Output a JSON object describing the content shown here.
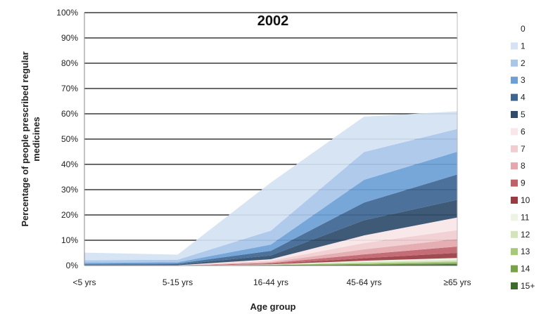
{
  "chart_data": {
    "type": "area",
    "stacked": true,
    "title": "2002",
    "xlabel": "Age group",
    "ylabel": "Percentage of people prescribed regular medicines",
    "categories": [
      "<5 yrs",
      "5-15 yrs",
      "16-44 yrs",
      "45-64 yrs",
      "≥65 yrs"
    ],
    "yticks": [
      "0%",
      "10%",
      "20%",
      "30%",
      "40%",
      "50%",
      "60%",
      "70%",
      "80%",
      "90%",
      "100%"
    ],
    "ylim": [
      0,
      100
    ],
    "grid": true,
    "legend_position": "right",
    "legend_labels": [
      "0",
      "1",
      "2",
      "3",
      "4",
      "5",
      "6",
      "7",
      "8",
      "9",
      "10",
      "11",
      "12",
      "13",
      "14",
      "15+"
    ],
    "series": [
      {
        "name": "15+",
        "color": "#3d6b2e",
        "values": [
          0,
          0,
          0.1,
          0.3,
          0.6
        ]
      },
      {
        "name": "14",
        "color": "#77a346",
        "values": [
          0,
          0,
          0.1,
          0.3,
          0.5
        ]
      },
      {
        "name": "13",
        "color": "#a6c978",
        "values": [
          0,
          0,
          0.1,
          0.4,
          0.5
        ]
      },
      {
        "name": "12",
        "color": "#d3e5b8",
        "values": [
          0,
          0,
          0.1,
          0.4,
          0.6
        ]
      },
      {
        "name": "11",
        "color": "#eef4e3",
        "values": [
          0,
          0,
          0.1,
          0.5,
          0.8
        ]
      },
      {
        "name": "10",
        "color": "#9a3b43",
        "values": [
          0,
          0,
          0.2,
          1.0,
          2.0
        ]
      },
      {
        "name": "9",
        "color": "#c0616a",
        "values": [
          0,
          0,
          0.3,
          1.5,
          2.5
        ]
      },
      {
        "name": "8",
        "color": "#e3a7ad",
        "values": [
          0,
          0,
          0.4,
          2.0,
          3.0
        ]
      },
      {
        "name": "7",
        "color": "#f1cdd0",
        "values": [
          0,
          0,
          0.5,
          2.5,
          3.5
        ]
      },
      {
        "name": "6",
        "color": "#f8e6e8",
        "values": [
          0.1,
          0.1,
          0.6,
          3.0,
          5.0
        ]
      },
      {
        "name": "5",
        "color": "#2f4c6b",
        "values": [
          0.2,
          0.3,
          1.5,
          6.0,
          7.0
        ]
      },
      {
        "name": "4",
        "color": "#3d6592",
        "values": [
          0.3,
          0.4,
          1.8,
          7.0,
          10.0
        ]
      },
      {
        "name": "3",
        "color": "#6b9fd6",
        "values": [
          0.5,
          0.5,
          2.5,
          9.0,
          9.0
        ]
      },
      {
        "name": "2",
        "color": "#a8c6e8",
        "values": [
          1.0,
          1.0,
          5.5,
          11.0,
          9.0
        ]
      },
      {
        "name": "1",
        "color": "#d4e2f3",
        "values": [
          3.0,
          2.0,
          19.0,
          14.0,
          7.0
        ]
      },
      {
        "name": "0",
        "color": "#ffffff",
        "values": [
          95.0,
          95.7,
          67.2,
          41.6,
          34.5
        ]
      }
    ]
  }
}
